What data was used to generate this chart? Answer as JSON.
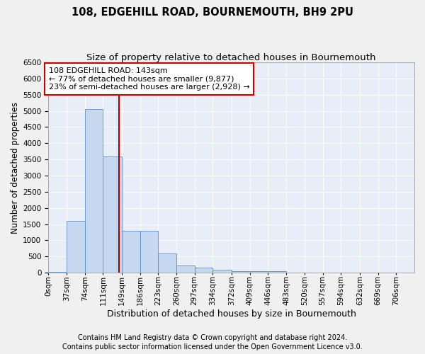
{
  "title": "108, EDGEHILL ROAD, BOURNEMOUTH, BH9 2PU",
  "subtitle": "Size of property relative to detached houses in Bournemouth",
  "xlabel": "Distribution of detached houses by size in Bournemouth",
  "ylabel": "Number of detached properties",
  "footer_line1": "Contains HM Land Registry data © Crown copyright and database right 2024.",
  "footer_line2": "Contains public sector information licensed under the Open Government Licence v3.0.",
  "annotation_line1": "108 EDGEHILL ROAD: 143sqm",
  "annotation_line2": "← 77% of detached houses are smaller (9,877)",
  "annotation_line3": "23% of semi-detached houses are larger (2,928) →",
  "red_line_x": 143,
  "bar_edges": [
    0,
    37,
    74,
    111,
    149,
    186,
    223,
    260,
    297,
    334,
    372,
    409,
    446,
    483,
    520,
    557,
    594,
    632,
    669,
    706,
    743
  ],
  "bar_heights": [
    30,
    1600,
    5050,
    3600,
    1300,
    1300,
    600,
    230,
    160,
    80,
    50,
    50,
    50,
    0,
    0,
    0,
    0,
    0,
    0,
    0
  ],
  "bar_color": "#c5d8f0",
  "bar_edge_color": "#5b8ec4",
  "red_line_color": "#aa0000",
  "annotation_box_edgecolor": "#cc0000",
  "background_color": "#e8eef8",
  "grid_color": "#ffffff",
  "ylim": [
    0,
    6500
  ],
  "yticks": [
    0,
    500,
    1000,
    1500,
    2000,
    2500,
    3000,
    3500,
    4000,
    4500,
    5000,
    5500,
    6000,
    6500
  ],
  "title_fontsize": 10.5,
  "subtitle_fontsize": 9.5,
  "xlabel_fontsize": 9,
  "ylabel_fontsize": 8.5,
  "tick_fontsize": 7.5,
  "annotation_fontsize": 8,
  "footer_fontsize": 7
}
